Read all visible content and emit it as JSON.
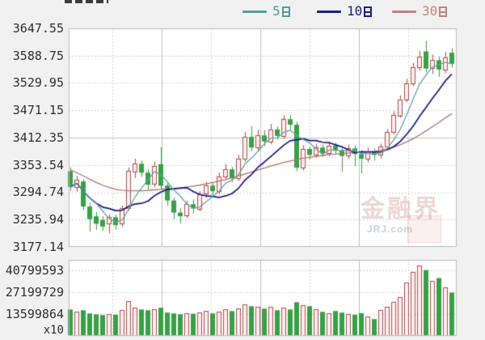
{
  "page": {
    "background": "#f1f1f2"
  },
  "legend": {
    "items": [
      {
        "label": "5日",
        "num": "5",
        "color": "#4F9E99"
      },
      {
        "label": "10日",
        "num": "10",
        "color": "#1B1B9A"
      },
      {
        "label": "30日",
        "num": "30",
        "color": "#C97F7F"
      }
    ]
  },
  "watermark": {
    "cn": "金融界",
    "en": "JRJ.com"
  },
  "colors": {
    "up": "#CE4242",
    "up_fill": "#FDF5F5",
    "down": "#35A344",
    "down_stroke": "#2E8F3C",
    "ma5": "#5BA8A2",
    "ma10": "#16169A",
    "ma30": "#BC6F6F",
    "grid_dashed": "#D6D6D6",
    "grid_solid": "#C0C0C0",
    "plot_border": "#BCBCBC",
    "plot_bg": "#FFFFFF",
    "axis_text": "#2E2E2E"
  },
  "chart_data": {
    "type": "candlestick",
    "title": "",
    "legend": [
      "5日",
      "10日",
      "30日"
    ],
    "legend_position": "top-right",
    "grid": true,
    "y_axis": {
      "labels": [
        "3647.55",
        "3588.75",
        "3529.95",
        "3471.15",
        "3412.35",
        "3353.54",
        "3294.74",
        "3235.94",
        "3177.14"
      ],
      "max": 3647.55,
      "min": 3177.14,
      "solid_line_value": 3412.35
    },
    "volume_y_axis": {
      "labels": [
        "40799593",
        "27199729",
        "13599864"
      ],
      "values": [
        40799593,
        27199729,
        13599864
      ],
      "unit_label": "x10",
      "scale_max": 47340000
    },
    "ma_definitions": [
      {
        "name": "5日",
        "window": 5
      },
      {
        "name": "10日",
        "window": 10
      },
      {
        "name": "30日",
        "window": 30
      }
    ],
    "candle_format": [
      "open",
      "high",
      "low",
      "close"
    ],
    "candles": [
      [
        3340,
        3348,
        3298,
        3306
      ],
      [
        3306,
        3330,
        3296,
        3322
      ],
      [
        3318,
        3323,
        3256,
        3264
      ],
      [
        3264,
        3272,
        3210,
        3237
      ],
      [
        3243,
        3252,
        3214,
        3227
      ],
      [
        3235,
        3243,
        3212,
        3221
      ],
      [
        3227,
        3247,
        3206,
        3241
      ],
      [
        3241,
        3247,
        3214,
        3224
      ],
      [
        3228,
        3266,
        3220,
        3261
      ],
      [
        3261,
        3348,
        3255,
        3341
      ],
      [
        3339,
        3367,
        3325,
        3356
      ],
      [
        3356,
        3363,
        3328,
        3337
      ],
      [
        3337,
        3344,
        3300,
        3311
      ],
      [
        3313,
        3360,
        3306,
        3352
      ],
      [
        3355,
        3392,
        3302,
        3309
      ],
      [
        3309,
        3315,
        3266,
        3277
      ],
      [
        3277,
        3283,
        3237,
        3251
      ],
      [
        3251,
        3261,
        3227,
        3243
      ],
      [
        3244,
        3277,
        3239,
        3269
      ],
      [
        3269,
        3279,
        3249,
        3260
      ],
      [
        3260,
        3297,
        3254,
        3291
      ],
      [
        3291,
        3317,
        3283,
        3309
      ],
      [
        3309,
        3315,
        3287,
        3297
      ],
      [
        3297,
        3337,
        3291,
        3329
      ],
      [
        3329,
        3355,
        3321,
        3344
      ],
      [
        3344,
        3349,
        3317,
        3325
      ],
      [
        3325,
        3375,
        3319,
        3367
      ],
      [
        3367,
        3424,
        3361,
        3414
      ],
      [
        3414,
        3437,
        3383,
        3391
      ],
      [
        3391,
        3429,
        3385,
        3417
      ],
      [
        3417,
        3428,
        3394,
        3404
      ],
      [
        3404,
        3442,
        3398,
        3430
      ],
      [
        3430,
        3436,
        3408,
        3416
      ],
      [
        3416,
        3460,
        3410,
        3452
      ],
      [
        3452,
        3461,
        3430,
        3440
      ],
      [
        3440,
        3446,
        3340,
        3348
      ],
      [
        3348,
        3396,
        3342,
        3388
      ],
      [
        3388,
        3393,
        3365,
        3375
      ],
      [
        3375,
        3399,
        3369,
        3391
      ],
      [
        3391,
        3397,
        3371,
        3379
      ],
      [
        3379,
        3403,
        3373,
        3395
      ],
      [
        3395,
        3401,
        3377,
        3385
      ],
      [
        3385,
        3391,
        3339,
        3373
      ],
      [
        3373,
        3397,
        3367,
        3389
      ],
      [
        3389,
        3395,
        3351,
        3377
      ],
      [
        3377,
        3385,
        3335,
        3367
      ],
      [
        3367,
        3391,
        3359,
        3383
      ],
      [
        3383,
        3389,
        3363,
        3375
      ],
      [
        3375,
        3399,
        3367,
        3393
      ],
      [
        3393,
        3431,
        3387,
        3425
      ],
      [
        3425,
        3469,
        3419,
        3461
      ],
      [
        3461,
        3503,
        3455,
        3495
      ],
      [
        3495,
        3539,
        3489,
        3529
      ],
      [
        3529,
        3573,
        3523,
        3564
      ],
      [
        3564,
        3599,
        3557,
        3587
      ],
      [
        3598,
        3621,
        3553,
        3561
      ],
      [
        3561,
        3591,
        3549,
        3579
      ],
      [
        3579,
        3587,
        3543,
        3559
      ],
      [
        3559,
        3597,
        3551,
        3585
      ],
      [
        3595,
        3605,
        3563,
        3571
      ]
    ],
    "volumes": [
      16500000,
      15000000,
      16000000,
      14000000,
      13500000,
      13000000,
      13500000,
      13200000,
      16000000,
      21500000,
      17500000,
      16500000,
      16000000,
      16500000,
      17500000,
      14500000,
      14000000,
      13500000,
      14000000,
      13800000,
      14500000,
      15500000,
      14000000,
      15000000,
      16500000,
      15500000,
      17000000,
      19500000,
      18500000,
      18000000,
      17000000,
      18000000,
      16000000,
      17500000,
      16500000,
      21000000,
      19000000,
      18500000,
      16500000,
      15000000,
      14000000,
      15500000,
      14500000,
      13800000,
      13200000,
      14200000,
      12000000,
      10500000,
      16000000,
      18000000,
      21000000,
      24000000,
      33000000,
      40000000,
      44000000,
      41000000,
      34000000,
      36000000,
      30000000,
      27000000
    ],
    "ma30": [
      3343,
      3337,
      3330,
      3323,
      3316,
      3310,
      3305,
      3301,
      3299,
      3298,
      3298,
      3298,
      3299,
      3300,
      3301,
      3302,
      3303,
      3304,
      3306,
      3308,
      3310,
      3313,
      3316,
      3319,
      3322,
      3326,
      3330,
      3334,
      3338,
      3343,
      3347,
      3351,
      3355,
      3359,
      3362,
      3365,
      3368,
      3370,
      3372,
      3374,
      3376,
      3377,
      3378,
      3379,
      3380,
      3381,
      3382,
      3383,
      3385,
      3388,
      3392,
      3397,
      3403,
      3410,
      3418,
      3427,
      3436,
      3445,
      3455,
      3464
    ]
  }
}
